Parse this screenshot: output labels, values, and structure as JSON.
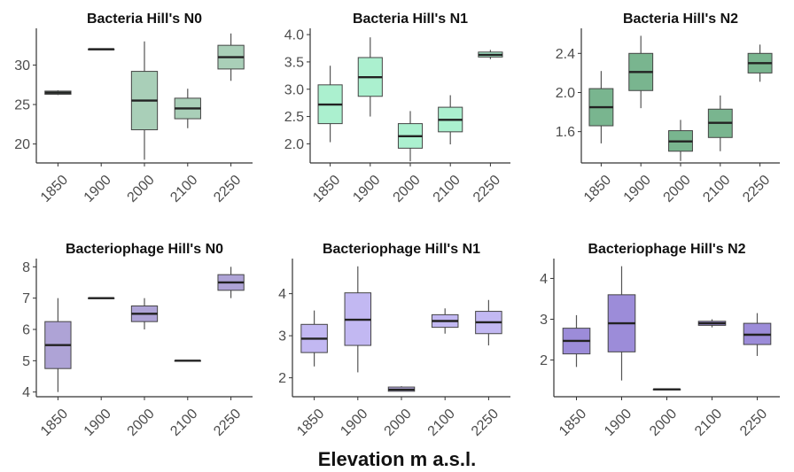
{
  "figure": {
    "xlabel": "Elevation m a.s.l."
  },
  "chart_data": [
    {
      "type": "box",
      "title": "Bacteria Hill's N0",
      "categories": [
        "1850",
        "1900",
        "2000",
        "2100",
        "2250"
      ],
      "ylim": [
        17.6,
        34.2
      ],
      "yticks": [
        20,
        25,
        30
      ],
      "fill": "#a9cfb8",
      "boxes": [
        {
          "min": 26.2,
          "q1": 26.3,
          "median": 26.5,
          "q3": 26.7,
          "max": 26.8
        },
        {
          "min": 32.0,
          "q1": 32.0,
          "median": 32.0,
          "q3": 32.0,
          "max": 32.0
        },
        {
          "min": 18.0,
          "q1": 21.8,
          "median": 25.5,
          "q3": 29.2,
          "max": 33.0
        },
        {
          "min": 22.0,
          "q1": 23.2,
          "median": 24.5,
          "q3": 25.8,
          "max": 27.0
        },
        {
          "min": 28.0,
          "q1": 29.5,
          "median": 31.0,
          "q3": 32.5,
          "max": 34.0
        }
      ]
    },
    {
      "type": "box",
      "title": "Bacteria Hill's N1",
      "categories": [
        "1850",
        "1900",
        "2000",
        "2100",
        "2250"
      ],
      "ylim": [
        1.65,
        4.05
      ],
      "yticks": [
        2.0,
        2.5,
        3.0,
        3.5,
        4.0
      ],
      "fill": "#abf0cf",
      "boxes": [
        {
          "min": 2.03,
          "q1": 2.37,
          "median": 2.72,
          "q3": 3.08,
          "max": 3.43
        },
        {
          "min": 2.5,
          "q1": 2.87,
          "median": 3.22,
          "q3": 3.58,
          "max": 3.95
        },
        {
          "min": 1.68,
          "q1": 1.92,
          "median": 2.14,
          "q3": 2.37,
          "max": 2.6
        },
        {
          "min": 1.99,
          "q1": 2.22,
          "median": 2.44,
          "q3": 2.67,
          "max": 2.89
        },
        {
          "min": 3.55,
          "q1": 3.59,
          "median": 3.63,
          "q3": 3.68,
          "max": 3.72
        }
      ]
    },
    {
      "type": "box",
      "title": "Bacteria Hill's N2",
      "categories": [
        "1850",
        "1900",
        "2000",
        "2100",
        "2250"
      ],
      "ylim": [
        1.28,
        2.62
      ],
      "yticks": [
        1.6,
        2.0,
        2.4
      ],
      "fill": "#79b58f",
      "boxes": [
        {
          "min": 1.48,
          "q1": 1.66,
          "median": 1.85,
          "q3": 2.04,
          "max": 2.22
        },
        {
          "min": 1.84,
          "q1": 2.02,
          "median": 2.21,
          "q3": 2.4,
          "max": 2.58
        },
        {
          "min": 1.3,
          "q1": 1.4,
          "median": 1.5,
          "q3": 1.61,
          "max": 1.72
        },
        {
          "min": 1.4,
          "q1": 1.54,
          "median": 1.69,
          "q3": 1.83,
          "max": 1.97
        },
        {
          "min": 2.11,
          "q1": 2.2,
          "median": 2.3,
          "q3": 2.4,
          "max": 2.49
        }
      ]
    },
    {
      "type": "box",
      "title": "Bacteriophage Hill's N0",
      "categories": [
        "1850",
        "1900",
        "2000",
        "2100",
        "2250"
      ],
      "ylim": [
        3.85,
        8.15
      ],
      "yticks": [
        4,
        5,
        6,
        7,
        8
      ],
      "fill": "#aea3d6",
      "boxes": [
        {
          "min": 4.0,
          "q1": 4.75,
          "median": 5.5,
          "q3": 6.25,
          "max": 7.0
        },
        {
          "min": 7.0,
          "q1": 7.0,
          "median": 7.0,
          "q3": 7.0,
          "max": 7.0
        },
        {
          "min": 6.0,
          "q1": 6.25,
          "median": 6.5,
          "q3": 6.75,
          "max": 7.0
        },
        {
          "min": 5.0,
          "q1": 5.0,
          "median": 5.0,
          "q3": 5.0,
          "max": 5.0
        },
        {
          "min": 7.0,
          "q1": 7.25,
          "median": 7.5,
          "q3": 7.75,
          "max": 8.0
        }
      ]
    },
    {
      "type": "box",
      "title": "Bacteriophage Hill's N1",
      "categories": [
        "1850",
        "1900",
        "2000",
        "2100",
        "2250"
      ],
      "ylim": [
        1.55,
        4.75
      ],
      "yticks": [
        2,
        3,
        4
      ],
      "fill": "#c2b8f2",
      "boxes": [
        {
          "min": 2.27,
          "q1": 2.6,
          "median": 2.93,
          "q3": 3.27,
          "max": 3.6
        },
        {
          "min": 2.13,
          "q1": 2.77,
          "median": 3.38,
          "q3": 4.02,
          "max": 4.65
        },
        {
          "min": 1.68,
          "q1": 1.68,
          "median": 1.72,
          "q3": 1.78,
          "max": 1.8
        },
        {
          "min": 3.05,
          "q1": 3.2,
          "median": 3.35,
          "q3": 3.5,
          "max": 3.65
        },
        {
          "min": 2.77,
          "q1": 3.05,
          "median": 3.32,
          "q3": 3.58,
          "max": 3.85
        }
      ]
    },
    {
      "type": "box",
      "title": "Bacteriophage Hill's N2",
      "categories": [
        "1850",
        "1900",
        "2000",
        "2100",
        "2250"
      ],
      "ylim": [
        1.1,
        4.4
      ],
      "yticks": [
        2,
        3,
        4
      ],
      "fill": "#9c8cd9",
      "boxes": [
        {
          "min": 1.83,
          "q1": 2.15,
          "median": 2.47,
          "q3": 2.78,
          "max": 3.1
        },
        {
          "min": 1.5,
          "q1": 2.2,
          "median": 2.9,
          "q3": 3.6,
          "max": 4.3
        },
        {
          "min": 1.28,
          "q1": 1.28,
          "median": 1.28,
          "q3": 1.28,
          "max": 1.28
        },
        {
          "min": 2.8,
          "q1": 2.85,
          "median": 2.9,
          "q3": 2.95,
          "max": 3.0
        },
        {
          "min": 2.1,
          "q1": 2.38,
          "median": 2.62,
          "q3": 2.9,
          "max": 3.15
        }
      ]
    }
  ]
}
